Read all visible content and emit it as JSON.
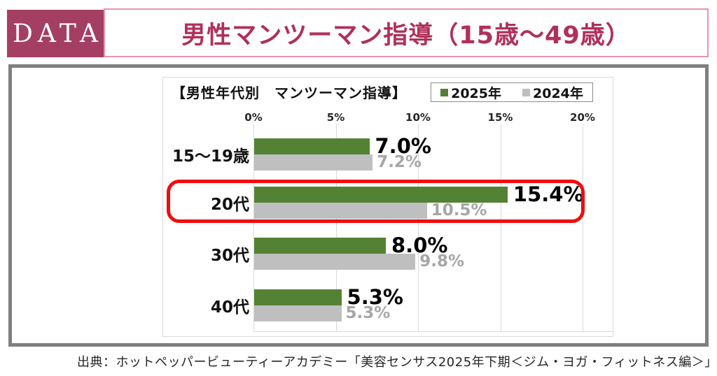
{
  "header": {
    "badge": "DATA",
    "title": "男性マンツーマン指導（15歳～49歳）"
  },
  "chart": {
    "title": "【男性年代別　マンツーマン指導】"
  },
  "chart_data": {
    "type": "bar",
    "orientation": "horizontal",
    "title": "【男性年代別　マンツーマン指導】",
    "categories": [
      "15～19歳",
      "20代",
      "30代",
      "40代"
    ],
    "series": [
      {
        "name": "2025年",
        "color": "#548235",
        "values": [
          7.0,
          15.4,
          8.0,
          5.3
        ],
        "labels": [
          "7.0%",
          "15.4%",
          "8.0%",
          "5.3%"
        ]
      },
      {
        "name": "2024年",
        "color": "#BFBFBF",
        "values": [
          7.2,
          10.5,
          9.8,
          5.3
        ],
        "labels": [
          "7.2%",
          "10.5%",
          "9.8%",
          "5.3%"
        ]
      }
    ],
    "x_axis": {
      "min": 0,
      "max": 20,
      "ticks": [
        "0%",
        "5%",
        "10%",
        "15%",
        "20%"
      ]
    },
    "grid": true,
    "legend_position": "top-right",
    "highlighted_category": "20代"
  },
  "colors": {
    "badge_bg": "#A53E63",
    "title_text": "#B03059",
    "title_border": "#E693AD",
    "panel_border": "#7F7F7F",
    "green": "#548235",
    "gray_bar": "#BFBFBF",
    "gray_label": "#A6A6A6",
    "gridline": "#D9D9D9",
    "highlight_red": "#F10D0D"
  },
  "source": "出典：ホットペッパービューティーアカデミー「美容センサス2025年下期＜ジム・ヨガ・フィットネス編＞」"
}
